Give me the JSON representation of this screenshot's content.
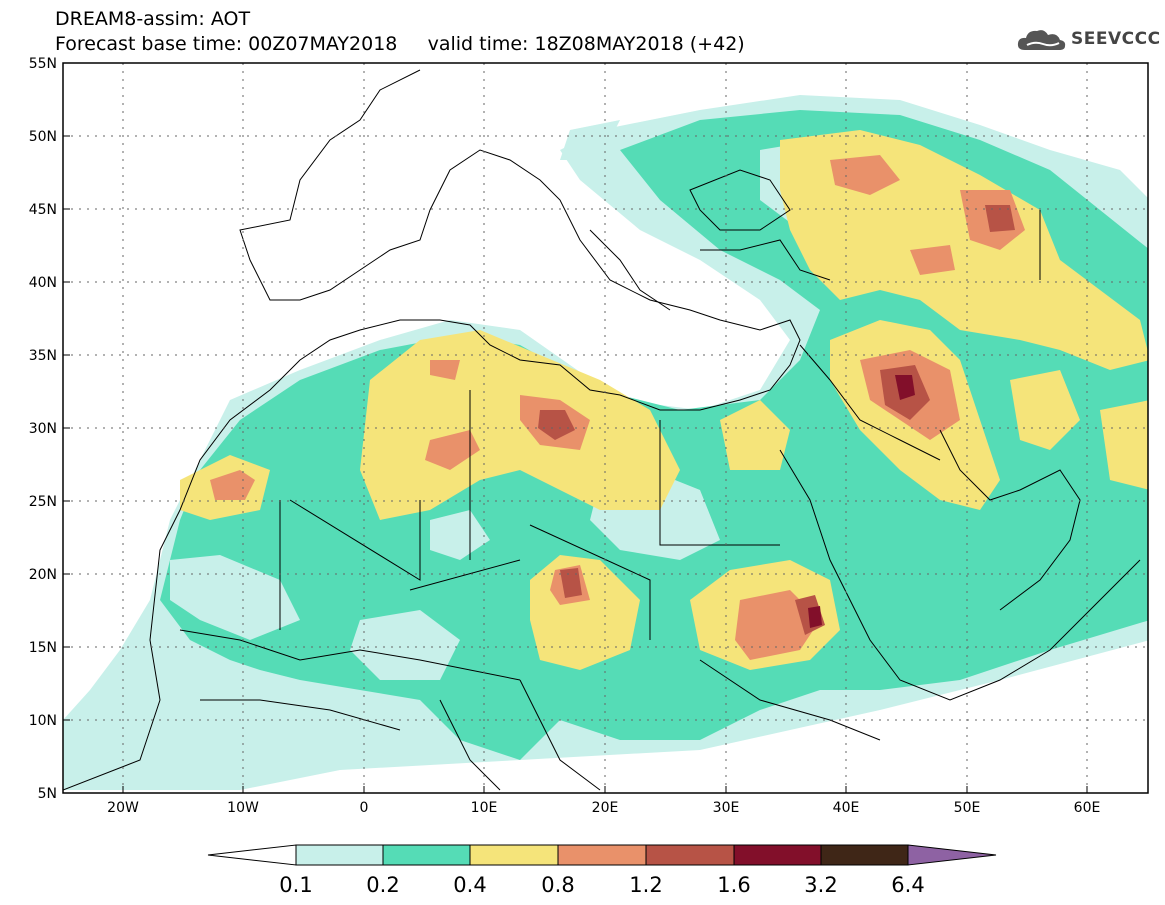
{
  "header": {
    "title_line1": "DREAM8-assim: AOT",
    "title_line2": "Forecast base time: 00Z07MAY2018     valid time: 18Z08MAY2018 (+42)",
    "logo_text": "SEEVCCC"
  },
  "map": {
    "lon_range": [
      -25,
      65
    ],
    "lat_range": [
      5,
      55
    ],
    "lat_ticks": [
      "55N",
      "50N",
      "45N",
      "40N",
      "35N",
      "30N",
      "25N",
      "20N",
      "15N",
      "10N",
      "5N"
    ],
    "lon_ticks": [
      "20W",
      "10W",
      "0",
      "10E",
      "20E",
      "30E",
      "40E",
      "50E",
      "60E"
    ],
    "grid": "dotted"
  },
  "colorbar": {
    "levels": [
      "0.1",
      "0.2",
      "0.4",
      "0.8",
      "1.2",
      "1.6",
      "3.2",
      "6.4"
    ],
    "colors": [
      "#ffffff",
      "#c8f0ea",
      "#55dcb6",
      "#f5e47a",
      "#e9916a",
      "#b75346",
      "#820f2a",
      "#3f2617",
      "#8e62a3"
    ]
  }
}
